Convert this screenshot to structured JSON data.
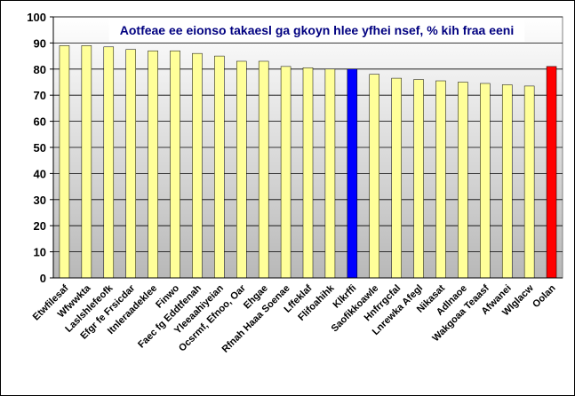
{
  "chart_data": {
    "type": "bar",
    "title": "Aotfeae ee eionso takaesl ga gkoyn hlee yfhei nsef, % kih fraa eeni",
    "xlabel": "",
    "ylabel": "",
    "ylim": [
      0,
      100
    ],
    "yticks": [
      0,
      10,
      20,
      30,
      40,
      50,
      60,
      70,
      80,
      90,
      100
    ],
    "grid": true,
    "categories": [
      "Etwfilesaf",
      "Wfwwkta",
      "Laslshlefeofk",
      "Efgr fe Frsicdar",
      "Itnleraadeklee",
      "Finwo",
      "Faec fg Eddtfenah",
      "Yleeaahiyeian",
      "Ocsrmf, Efnoo, Oar",
      "Ehgae",
      "Rfnah Haaa Soenae",
      "Lffeklaf",
      "Flifoahihk",
      "Klkrffi",
      "Saofikkoawle",
      "Hnfrrgcfal",
      "Lnrewka Afegl",
      "Nikasat",
      "Adlnaoe",
      "Wakgoaa Teaasf",
      "Afwanei",
      "Wlglacw",
      "Oolan"
    ],
    "values": [
      89,
      89,
      88.5,
      87.5,
      87,
      87,
      86,
      85,
      83,
      83,
      81,
      80.5,
      80,
      80,
      78,
      76.5,
      76,
      75.5,
      75,
      74.5,
      74,
      73.5,
      81
    ],
    "colors": {
      "default": "#ffff99",
      "Klkrffi": "#0000ff",
      "Oolan": "#ff0000"
    }
  }
}
